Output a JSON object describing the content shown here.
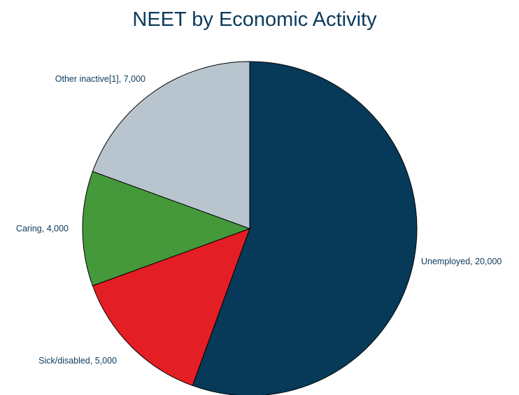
{
  "chart_data": {
    "type": "pie",
    "title": "NEET by Economic Activity",
    "slices": [
      {
        "category": "Unemployed",
        "value": 20000,
        "label": "Unemployed, 20,000",
        "color": "#073a59"
      },
      {
        "category": "Sick/disabled",
        "value": 5000,
        "label": "Sick/disabled, 5,000",
        "color": "#e31e24"
      },
      {
        "category": "Caring",
        "value": 4000,
        "label": "Caring, 4,000",
        "color": "#46993b"
      },
      {
        "category": "Other inactive[1]",
        "value": 7000,
        "label": "Other inactive[1], 7,000",
        "color": "#b8c5ce"
      }
    ],
    "start": "top",
    "direction": "clockwise",
    "legend": "none"
  }
}
